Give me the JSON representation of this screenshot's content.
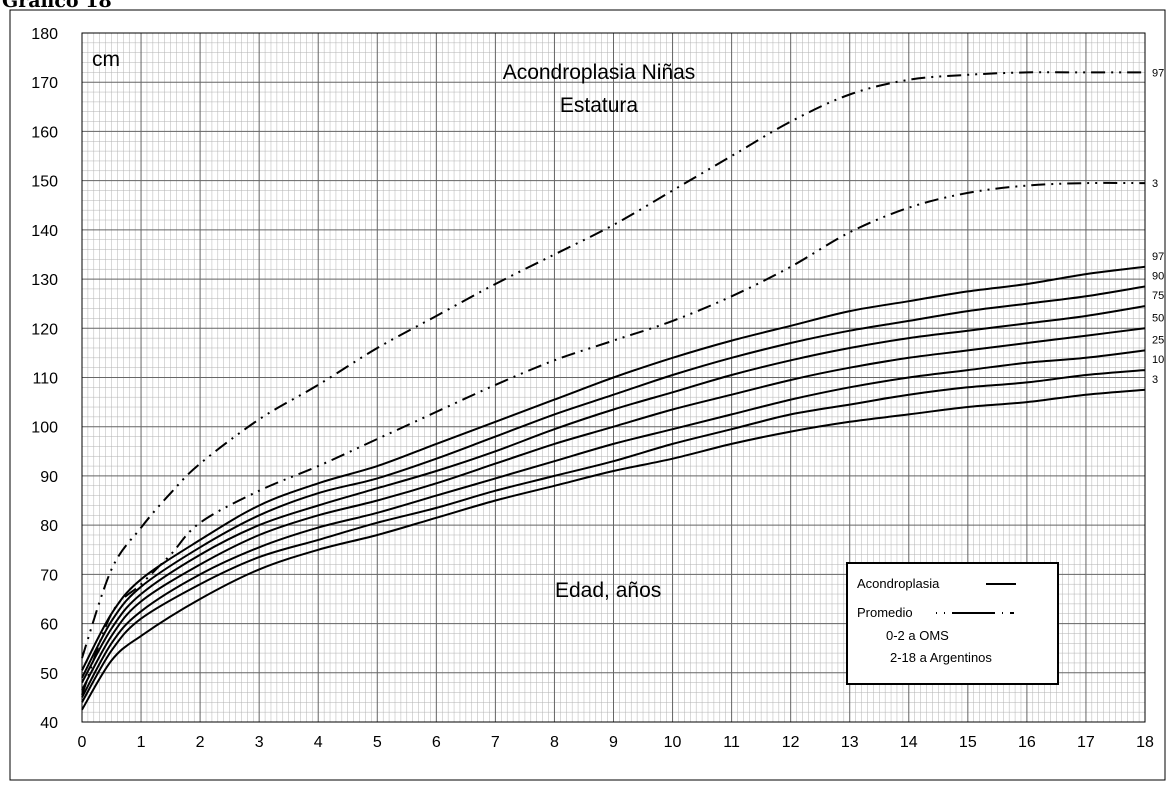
{
  "page_heading": "Gráfico 18",
  "chart_data": {
    "type": "line",
    "title": "Acondroplasia Niñas",
    "subtitle": "Estatura",
    "ylabel": "cm",
    "xlabel": "Edad, años",
    "xlim": [
      0,
      18
    ],
    "ylim": [
      40,
      180
    ],
    "x_ticks": [
      0,
      1,
      2,
      3,
      4,
      5,
      6,
      7,
      8,
      9,
      10,
      11,
      12,
      13,
      14,
      15,
      16,
      17,
      18
    ],
    "y_ticks": [
      40,
      50,
      60,
      70,
      80,
      90,
      100,
      110,
      120,
      130,
      140,
      150,
      160,
      170,
      180
    ],
    "grid": true,
    "legend_position": "bottom-right",
    "legend": {
      "items": [
        {
          "label": "Acondroplasia",
          "style": "solid"
        },
        {
          "label": "Promedio",
          "style": "dash-dot-dot"
        }
      ],
      "notes": [
        "0-2 a OMS",
        "2-18 a Argentinos"
      ]
    },
    "achondroplasia_series": [
      {
        "name": "97",
        "x": [
          0,
          0.5,
          1,
          2,
          3,
          4,
          5,
          6,
          7,
          8,
          9,
          10,
          11,
          12,
          13,
          14,
          15,
          16,
          17,
          18
        ],
        "y": [
          50.5,
          62,
          69,
          77,
          84,
          88.5,
          92,
          96.5,
          101,
          105.5,
          110,
          114,
          117.5,
          120.5,
          123.5,
          125.5,
          127.5,
          129,
          131,
          132.5
        ]
      },
      {
        "name": "90",
        "x": [
          0,
          0.5,
          1,
          2,
          3,
          4,
          5,
          6,
          7,
          8,
          9,
          10,
          11,
          12,
          13,
          14,
          15,
          16,
          17,
          18
        ],
        "y": [
          49,
          60.5,
          67.5,
          75.5,
          82,
          86.5,
          89.5,
          93.5,
          98,
          102.5,
          106.5,
          110.5,
          114,
          117,
          119.5,
          121.5,
          123.5,
          125,
          126.5,
          128.5
        ]
      },
      {
        "name": "75",
        "x": [
          0,
          0.5,
          1,
          2,
          3,
          4,
          5,
          6,
          7,
          8,
          9,
          10,
          11,
          12,
          13,
          14,
          15,
          16,
          17,
          18
        ],
        "y": [
          48,
          59,
          66,
          74,
          80,
          84,
          87.5,
          91,
          95,
          99.5,
          103.5,
          107,
          110.5,
          113.5,
          116,
          118,
          119.5,
          121,
          122.5,
          124.5
        ]
      },
      {
        "name": "50",
        "x": [
          0,
          0.5,
          1,
          2,
          3,
          4,
          5,
          6,
          7,
          8,
          9,
          10,
          11,
          12,
          13,
          14,
          15,
          16,
          17,
          18
        ],
        "y": [
          46.5,
          57.5,
          64.5,
          72,
          78,
          82,
          85,
          88.5,
          92.5,
          96.5,
          100,
          103.5,
          106.5,
          109.5,
          112,
          114,
          115.5,
          117,
          118.5,
          120
        ]
      },
      {
        "name": "25",
        "x": [
          0,
          0.5,
          1,
          2,
          3,
          4,
          5,
          6,
          7,
          8,
          9,
          10,
          11,
          12,
          13,
          14,
          15,
          16,
          17,
          18
        ],
        "y": [
          45,
          56,
          62.5,
          70,
          75.5,
          79.5,
          82.5,
          86,
          89.5,
          93,
          96.5,
          99.5,
          102.5,
          105.5,
          108,
          110,
          111.5,
          113,
          114,
          115.5
        ]
      },
      {
        "name": "10",
        "x": [
          0,
          0.5,
          1,
          2,
          3,
          4,
          5,
          6,
          7,
          8,
          9,
          10,
          11,
          12,
          13,
          14,
          15,
          16,
          17,
          18
        ],
        "y": [
          44,
          54.5,
          61,
          68,
          73.5,
          77,
          80.5,
          83.5,
          87,
          90,
          93,
          96.5,
          99.5,
          102.5,
          104.5,
          106.5,
          108,
          109,
          110.5,
          111.5
        ]
      },
      {
        "name": "3",
        "x": [
          0,
          0.5,
          1,
          2,
          3,
          4,
          5,
          6,
          7,
          8,
          9,
          10,
          11,
          12,
          13,
          14,
          15,
          16,
          17,
          18
        ],
        "y": [
          42.5,
          52.5,
          57.5,
          65,
          71,
          75,
          78,
          81.5,
          85,
          88,
          91,
          93.5,
          96.5,
          99,
          101,
          102.5,
          104,
          105,
          106.5,
          107.5
        ]
      }
    ],
    "average_series": [
      {
        "name": "97",
        "x": [
          0,
          0.5,
          1,
          1.5,
          2,
          3,
          4,
          5,
          6,
          7,
          8,
          9,
          10,
          11,
          12,
          13,
          14,
          15,
          16,
          17,
          18
        ],
        "y": [
          53,
          71,
          79.5,
          86.5,
          92.5,
          101.5,
          108.5,
          116,
          122.5,
          129,
          135,
          141,
          148,
          155,
          162,
          167.5,
          170.5,
          171.5,
          172,
          172,
          172
        ]
      },
      {
        "name": "3",
        "x": [
          0,
          0.5,
          1,
          1.5,
          2,
          3,
          4,
          5,
          6,
          7,
          8,
          9,
          10,
          11,
          12,
          13,
          14,
          15,
          16,
          17,
          18
        ],
        "y": [
          45.5,
          62,
          68,
          74,
          80.5,
          87,
          92,
          97.5,
          103,
          108.5,
          113.5,
          117.5,
          121.5,
          126.5,
          132.5,
          139.5,
          144.5,
          147.5,
          149,
          149.5,
          149.5
        ]
      }
    ]
  }
}
